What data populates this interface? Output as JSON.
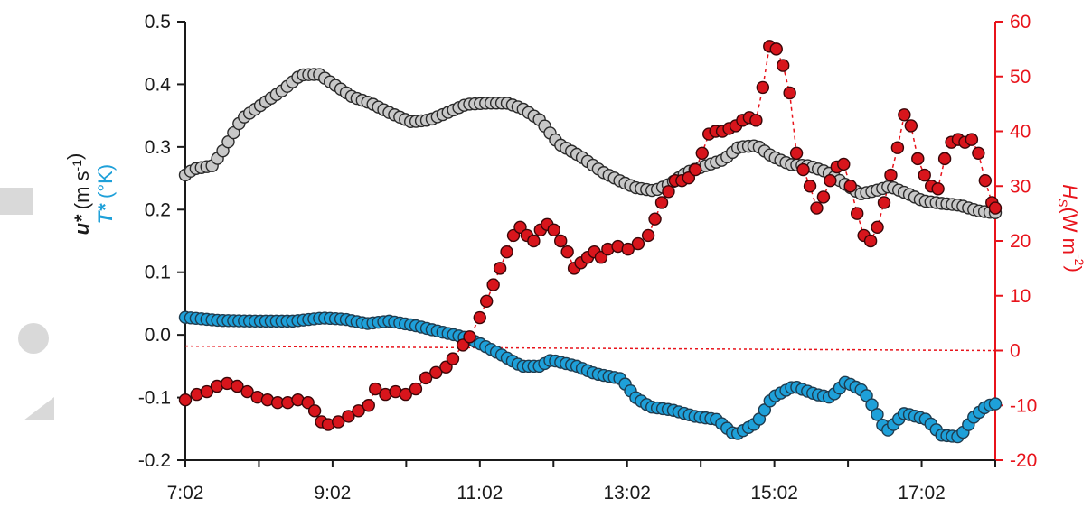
{
  "chart_data": {
    "type": "scatter",
    "title": "",
    "x_tick_labels": [
      "7:02",
      "9:02",
      "11:02",
      "13:02",
      "15:02",
      "17:02"
    ],
    "x_range_hours": [
      7.033,
      18.033
    ],
    "y_left": {
      "label_parts": [
        {
          "text": "u*",
          "sub": "",
          "sup": "",
          "color": "#1a1a1a",
          "style": "italic-bold"
        },
        {
          "text": " (m s",
          "sub": "",
          "sup": "-1",
          "color": "#1a1a1a",
          "style": "normal"
        },
        {
          "text": ")",
          "sub": "",
          "sup": "",
          "color": "#1a1a1a",
          "style": "normal"
        }
      ],
      "label2_parts": [
        {
          "text": "T*",
          "sub": "",
          "sup": "",
          "color": "#1ea0d9",
          "style": "italic-bold"
        },
        {
          "text": " (°K)",
          "sub": "",
          "sup": "",
          "color": "#1ea0d9",
          "style": "normal"
        }
      ],
      "range": [
        -0.2,
        0.5
      ],
      "ticks": [
        "-0.2",
        "-0.1",
        "0.0",
        "0.1",
        "0.2",
        "0.3",
        "0.4",
        "0.5"
      ],
      "tick_values": [
        -0.2,
        -0.1,
        0.0,
        0.1,
        0.2,
        0.3,
        0.4,
        0.5
      ]
    },
    "y_right": {
      "label_main": "H",
      "label_sub": "S",
      "label_unit": "(W m",
      "label_sup": "-2",
      "label_close": ")",
      "range": [
        -20,
        60
      ],
      "ticks": [
        "-20",
        "-10",
        "0",
        "10",
        "20",
        "30",
        "40",
        "50",
        "60"
      ],
      "tick_values": [
        -20,
        -10,
        0,
        10,
        20,
        30,
        40,
        50,
        60
      ],
      "color": "#e8131b"
    },
    "zero_reference": {
      "axis": "right",
      "y_start": 0.8,
      "y_end": 0.0,
      "color": "#e8131b",
      "style": "dotted"
    },
    "series": [
      {
        "name": "u*",
        "axis": "left",
        "marker_fill": "#c8c8c8",
        "marker_stroke": "#2a2a2a",
        "line": false,
        "anchors": [
          [
            7.03,
            0.255
          ],
          [
            7.15,
            0.265
          ],
          [
            7.4,
            0.27
          ],
          [
            7.55,
            0.295
          ],
          [
            7.8,
            0.345
          ],
          [
            8.1,
            0.37
          ],
          [
            8.35,
            0.39
          ],
          [
            8.6,
            0.415
          ],
          [
            8.85,
            0.416
          ],
          [
            9.05,
            0.4
          ],
          [
            9.3,
            0.38
          ],
          [
            9.55,
            0.37
          ],
          [
            9.8,
            0.355
          ],
          [
            10.1,
            0.34
          ],
          [
            10.35,
            0.343
          ],
          [
            10.6,
            0.355
          ],
          [
            10.85,
            0.368
          ],
          [
            11.15,
            0.37
          ],
          [
            11.4,
            0.37
          ],
          [
            11.6,
            0.362
          ],
          [
            11.85,
            0.343
          ],
          [
            12.1,
            0.305
          ],
          [
            12.4,
            0.285
          ],
          [
            12.7,
            0.26
          ],
          [
            12.95,
            0.245
          ],
          [
            13.15,
            0.235
          ],
          [
            13.4,
            0.23
          ],
          [
            13.6,
            0.24
          ],
          [
            13.85,
            0.26
          ],
          [
            14.1,
            0.27
          ],
          [
            14.35,
            0.28
          ],
          [
            14.55,
            0.3
          ],
          [
            14.8,
            0.302
          ],
          [
            15.0,
            0.285
          ],
          [
            15.25,
            0.272
          ],
          [
            15.5,
            0.27
          ],
          [
            15.75,
            0.26
          ],
          [
            16.0,
            0.24
          ],
          [
            16.2,
            0.225
          ],
          [
            16.4,
            0.23
          ],
          [
            16.6,
            0.237
          ],
          [
            16.85,
            0.225
          ],
          [
            17.05,
            0.214
          ],
          [
            17.3,
            0.21
          ],
          [
            17.55,
            0.207
          ],
          [
            17.8,
            0.198
          ],
          [
            18.0,
            0.195
          ]
        ]
      },
      {
        "name": "T*",
        "axis": "left",
        "marker_fill": "#1ea0d9",
        "marker_stroke": "#1f3c4f",
        "line": false,
        "anchors": [
          [
            7.03,
            0.028
          ],
          [
            7.5,
            0.023
          ],
          [
            8.0,
            0.022
          ],
          [
            8.5,
            0.022
          ],
          [
            8.9,
            0.027
          ],
          [
            9.2,
            0.025
          ],
          [
            9.5,
            0.018
          ],
          [
            9.8,
            0.022
          ],
          [
            10.15,
            0.015
          ],
          [
            10.5,
            0.005
          ],
          [
            10.8,
            -0.003
          ],
          [
            11.0,
            -0.012
          ],
          [
            11.3,
            -0.03
          ],
          [
            11.6,
            -0.05
          ],
          [
            11.85,
            -0.05
          ],
          [
            12.0,
            -0.04
          ],
          [
            12.35,
            -0.05
          ],
          [
            12.6,
            -0.062
          ],
          [
            12.95,
            -0.07
          ],
          [
            13.15,
            -0.1
          ],
          [
            13.35,
            -0.115
          ],
          [
            13.65,
            -0.12
          ],
          [
            13.95,
            -0.13
          ],
          [
            14.25,
            -0.135
          ],
          [
            14.5,
            -0.16
          ],
          [
            14.8,
            -0.14
          ],
          [
            15.0,
            -0.1
          ],
          [
            15.3,
            -0.082
          ],
          [
            15.6,
            -0.095
          ],
          [
            15.8,
            -0.1
          ],
          [
            16.0,
            -0.075
          ],
          [
            16.25,
            -0.09
          ],
          [
            16.4,
            -0.12
          ],
          [
            16.55,
            -0.155
          ],
          [
            16.8,
            -0.125
          ],
          [
            17.1,
            -0.135
          ],
          [
            17.3,
            -0.16
          ],
          [
            17.55,
            -0.163
          ],
          [
            17.75,
            -0.13
          ],
          [
            17.9,
            -0.115
          ],
          [
            18.0,
            -0.11
          ]
        ]
      },
      {
        "name": "Hs",
        "axis": "right",
        "marker_fill": "#d8151c",
        "marker_stroke": "#3a0608",
        "line": true,
        "line_color": "#e8131b",
        "points": [
          [
            7.03,
            -9
          ],
          [
            7.2,
            -8
          ],
          [
            7.35,
            -7.5
          ],
          [
            7.5,
            -6.5
          ],
          [
            7.65,
            -6
          ],
          [
            7.8,
            -6.5
          ],
          [
            7.95,
            -7.5
          ],
          [
            8.1,
            -8.5
          ],
          [
            8.25,
            -9
          ],
          [
            8.4,
            -9.5
          ],
          [
            8.55,
            -9.5
          ],
          [
            8.7,
            -9
          ],
          [
            8.85,
            -9.5
          ],
          [
            8.95,
            -11
          ],
          [
            9.05,
            -13
          ],
          [
            9.15,
            -13.5
          ],
          [
            9.3,
            -13
          ],
          [
            9.45,
            -12
          ],
          [
            9.6,
            -11
          ],
          [
            9.75,
            -10
          ],
          [
            9.85,
            -7
          ],
          [
            10.0,
            -8
          ],
          [
            10.15,
            -7.5
          ],
          [
            10.3,
            -8
          ],
          [
            10.45,
            -7
          ],
          [
            10.6,
            -5
          ],
          [
            10.75,
            -4
          ],
          [
            10.9,
            -3
          ],
          [
            11.0,
            -1.5
          ],
          [
            11.15,
            1
          ],
          [
            11.25,
            2.5
          ],
          [
            11.4,
            6
          ],
          [
            11.5,
            9
          ],
          [
            11.6,
            12
          ],
          [
            11.7,
            15
          ],
          [
            11.8,
            18
          ],
          [
            11.9,
            21
          ],
          [
            12.0,
            22.5
          ],
          [
            12.1,
            21
          ],
          [
            12.2,
            20
          ],
          [
            12.3,
            22
          ],
          [
            12.4,
            23
          ],
          [
            12.5,
            22
          ],
          [
            12.6,
            20
          ],
          [
            12.7,
            18
          ],
          [
            12.8,
            15
          ],
          [
            12.9,
            16
          ],
          [
            13.0,
            17
          ],
          [
            13.1,
            18
          ],
          [
            13.2,
            17
          ],
          [
            13.3,
            18.5
          ],
          [
            13.45,
            19
          ],
          [
            13.6,
            18.5
          ],
          [
            13.75,
            19.5
          ],
          [
            13.9,
            21
          ],
          [
            14.0,
            24
          ],
          [
            14.1,
            27
          ],
          [
            14.2,
            29
          ],
          [
            14.3,
            31
          ],
          [
            14.4,
            31
          ],
          [
            14.5,
            31.5
          ],
          [
            14.6,
            33
          ],
          [
            14.7,
            36
          ],
          [
            14.8,
            39.5
          ],
          [
            14.9,
            40
          ],
          [
            15.0,
            40
          ],
          [
            15.1,
            40.5
          ],
          [
            15.2,
            41
          ],
          [
            15.3,
            42
          ],
          [
            15.4,
            42.5
          ],
          [
            15.5,
            42
          ],
          [
            15.6,
            48
          ],
          [
            15.7,
            55.5
          ],
          [
            15.8,
            55
          ],
          [
            15.9,
            52
          ],
          [
            16.0,
            47
          ],
          [
            16.1,
            36
          ],
          [
            16.2,
            33
          ],
          [
            16.3,
            30
          ],
          [
            16.4,
            26
          ],
          [
            16.5,
            28
          ],
          [
            16.6,
            31
          ],
          [
            16.7,
            33.5
          ],
          [
            16.8,
            34
          ],
          [
            16.9,
            30
          ],
          [
            17.0,
            25
          ],
          [
            17.1,
            21
          ],
          [
            17.2,
            20
          ],
          [
            17.3,
            22.5
          ],
          [
            17.4,
            27
          ],
          [
            17.5,
            32
          ],
          [
            17.6,
            37
          ],
          [
            17.7,
            43
          ],
          [
            17.8,
            41
          ],
          [
            17.9,
            35
          ],
          [
            18.0,
            32
          ],
          [
            18.1,
            30
          ],
          [
            18.2,
            29.5
          ],
          [
            18.3,
            35
          ],
          [
            18.4,
            38
          ],
          [
            18.5,
            38.5
          ],
          [
            18.6,
            38
          ],
          [
            18.7,
            38.5
          ],
          [
            18.8,
            36
          ],
          [
            18.9,
            31
          ],
          [
            19.0,
            27
          ],
          [
            19.05,
            26
          ]
        ]
      }
    ]
  }
}
